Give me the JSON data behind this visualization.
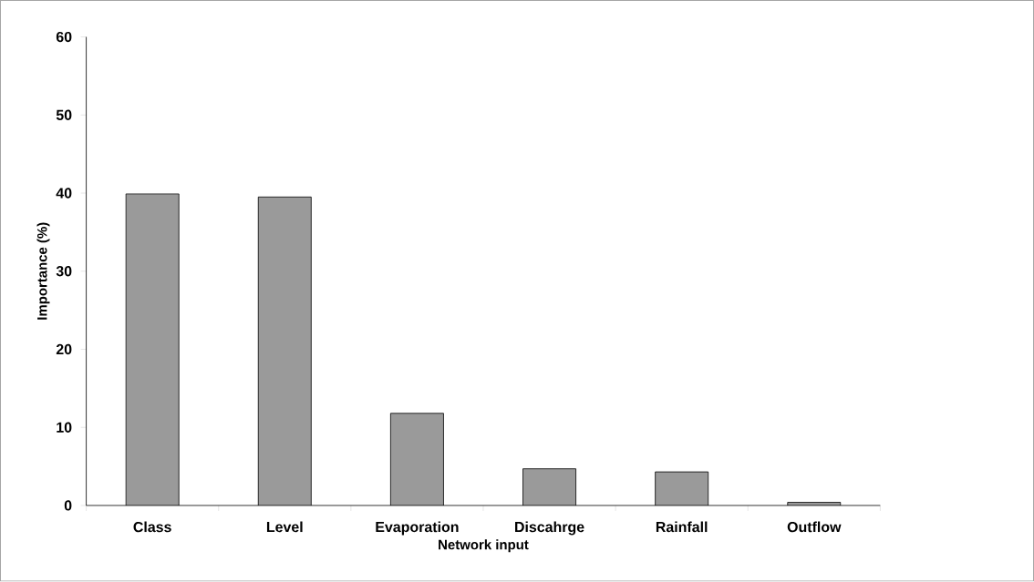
{
  "chart_data": {
    "type": "bar",
    "xlabel": "Network input",
    "ylabel": "Importance (%)",
    "categories": [
      "Class",
      "Level",
      "Evaporation",
      "Discahrge",
      "Rainfall",
      "Outflow"
    ],
    "values": [
      39.9,
      39.5,
      11.8,
      4.7,
      4.3,
      0.4
    ],
    "color": "#9a9a9a",
    "ylim": [
      0,
      60
    ],
    "yticks": [
      0,
      10,
      20,
      30,
      40,
      50,
      60
    ],
    "grid": false
  }
}
